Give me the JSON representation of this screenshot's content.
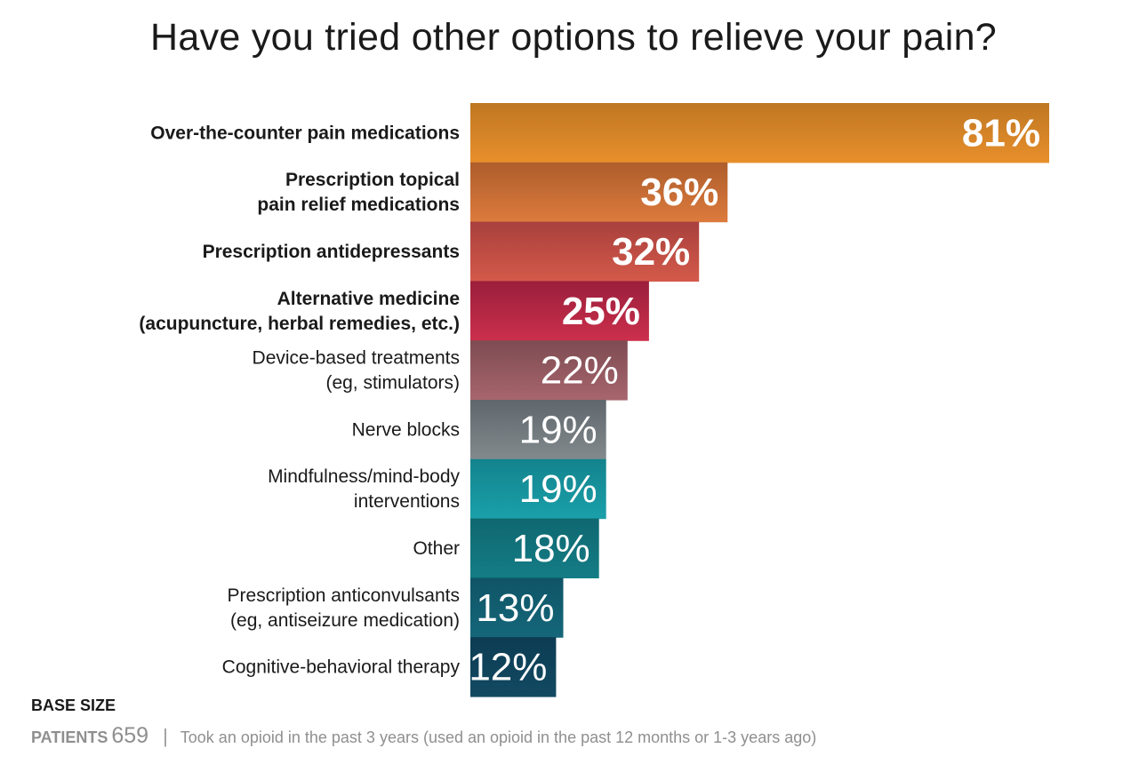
{
  "chart_data": {
    "type": "bar",
    "orientation": "horizontal",
    "title": "Have you tried other options to relieve your pain?",
    "categories": [
      [
        "Over-the-counter pain medications"
      ],
      [
        "Prescription topical",
        "pain relief medications"
      ],
      [
        "Prescription antidepressants"
      ],
      [
        "Alternative medicine",
        "(acupuncture, herbal remedies, etc.)"
      ],
      [
        "Device-based treatments",
        "(eg, stimulators)"
      ],
      [
        "Nerve blocks"
      ],
      [
        "Mindfulness/mind-body",
        "interventions"
      ],
      [
        "Other"
      ],
      [
        "Prescription anticonvulsants",
        "(eg, antiseizure medication)"
      ],
      [
        "Cognitive-behavioral therapy"
      ]
    ],
    "values": [
      81,
      36,
      32,
      25,
      22,
      19,
      19,
      18,
      13,
      12
    ],
    "value_labels": [
      "81%",
      "36%",
      "32%",
      "25%",
      "22%",
      "19%",
      "19%",
      "18%",
      "13%",
      "12%"
    ],
    "emphasized": [
      true,
      true,
      true,
      true,
      false,
      false,
      false,
      false,
      false,
      false
    ],
    "bar_colors": [
      [
        "#bf7722",
        "#e88f2c"
      ],
      [
        "#ad5d2c",
        "#dd7b3d"
      ],
      [
        "#a8403d",
        "#d45a4a"
      ],
      [
        "#9a1f3b",
        "#cc2f4c"
      ],
      [
        "#7d4c52",
        "#a8656d"
      ],
      [
        "#5f676c",
        "#828a8e"
      ],
      [
        "#13838d",
        "#1aa0aa"
      ],
      [
        "#0f6770",
        "#147d86"
      ],
      [
        "#0f5466",
        "#15677a"
      ],
      [
        "#0c3c53",
        "#124a62"
      ]
    ],
    "xlim": [
      0,
      81
    ],
    "grid": false,
    "legend": "none"
  },
  "footer": {
    "base_size_label": "BASE SIZE",
    "patients_label": "PATIENTS",
    "patients_count": "659",
    "separator": "|",
    "note": "Took an opioid in the past 3 years (used an opioid in the past 12 months or 1-3 years ago)"
  }
}
